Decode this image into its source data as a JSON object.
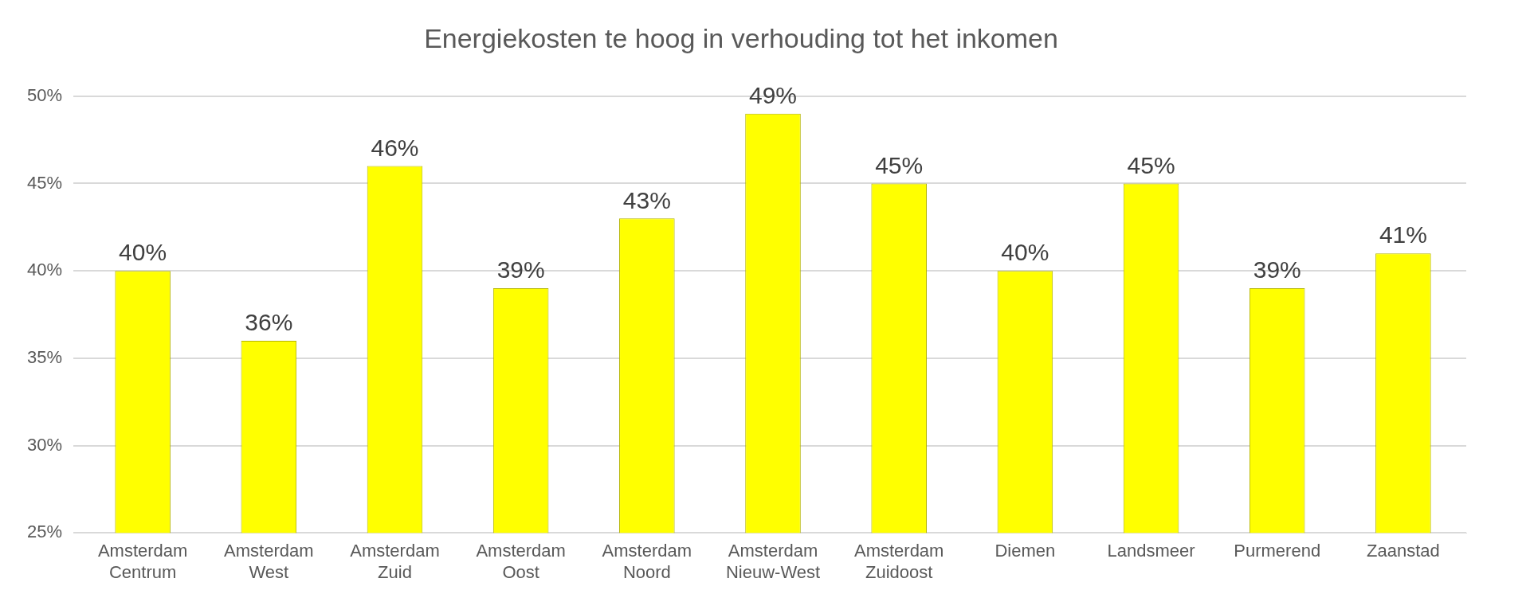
{
  "chart_data": {
    "type": "bar",
    "title": "Energiekosten te hoog in verhouding tot het inkomen",
    "categories": [
      "Amsterdam Centrum",
      "Amsterdam West",
      "Amsterdam Zuid",
      "Amsterdam Oost",
      "Amsterdam Noord",
      "Amsterdam Nieuw-West",
      "Amsterdam Zuidoost",
      "Diemen",
      "Landsmeer",
      "Purmerend",
      "Zaanstad"
    ],
    "values": [
      40,
      36,
      46,
      39,
      43,
      49,
      45,
      40,
      45,
      39,
      41
    ],
    "value_labels": [
      "40%",
      "36%",
      "46%",
      "39%",
      "43%",
      "49%",
      "45%",
      "40%",
      "45%",
      "39%",
      "41%"
    ],
    "color": "#ffff00",
    "ylim": [
      25,
      50
    ],
    "yticks": [
      {
        "value": 25,
        "label": "25%"
      },
      {
        "value": 30,
        "label": "30%"
      },
      {
        "value": 35,
        "label": "35%"
      },
      {
        "value": 40,
        "label": "40%"
      },
      {
        "value": 45,
        "label": "45%"
      },
      {
        "value": 50,
        "label": "50%"
      }
    ],
    "grid": "y"
  }
}
